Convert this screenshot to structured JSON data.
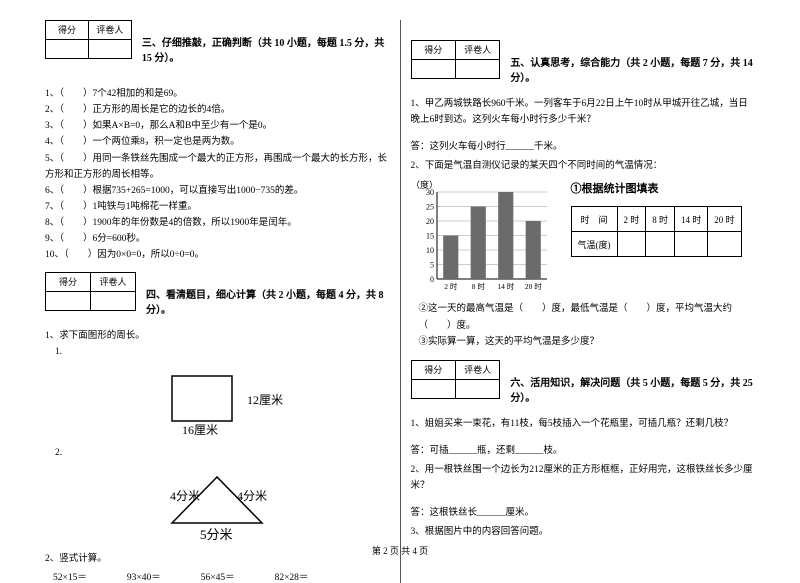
{
  "score_box": {
    "score": "得分",
    "marker": "评卷人"
  },
  "footer": "第 2 页 共 4 页",
  "section3": {
    "title": "三、仔细推敲，正确判断（共 10 小题，每题 1.5 分，共 15 分）。",
    "items": [
      "（　　）7个42相加的和是69。",
      "（　　）正方形的周长是它的边长的4倍。",
      "（　　）如果A×B=0，那么A和B中至少有一个是0。",
      "（　　）一个两位乘8，积一定也是两为数。",
      "（　　）用同一条铁丝先围成一个最大的正方形，再围成一个最大的长方形，长方形和正方形的周长相等。",
      "（　　）根据735+265=1000，可以直接写出1000−735的差。",
      "（　　）1吨铁与1吨棉花一样重。",
      "（　　）1900年的年份数是4的倍数，所以1900年是闰年。",
      "（　　）6分=600秒。",
      "（　　）因为0×0=0，所以0÷0=0。"
    ]
  },
  "section4": {
    "title": "四、看清题目，细心计算（共 2 小题，每题 4 分，共 8 分）。",
    "q1": "求下面图形的周长。",
    "q1_1": "1.",
    "fig1": {
      "w_label": "16厘米",
      "h_label": "12厘米"
    },
    "q1_2": "2.",
    "fig2": {
      "left": "4分米",
      "right": "4分米",
      "bottom": "5分米"
    },
    "q2": "竖式计算。",
    "calc": [
      "52×15＝",
      "93×40＝",
      "56×45＝",
      "82×28＝"
    ]
  },
  "section5": {
    "title": "五、认真思考，综合能力（共 2 小题，每题 7 分，共 14 分）。",
    "q1": "甲乙两城铁路长960千米。一列客车于6月22日上午10时从甲城开往乙城，当日晚上6时到达。这列火车每小时行多少千米？",
    "a1": "答：这列火车每小时行______千米。",
    "q2": "下面是气温自测仪记录的某天四个不同时间的气温情况：",
    "chart": {
      "type": "bar",
      "y_label": "（度）",
      "title": "①根据统计图填表",
      "y_ticks": [
        30,
        25,
        20,
        15,
        10,
        5,
        0
      ],
      "x_ticks": [
        "2 时",
        "8 时",
        "14 时",
        "20 时"
      ],
      "values": [
        15,
        25,
        30,
        20
      ],
      "bar_color": "#6b6b6b",
      "grid_color": "#999999",
      "ylim": [
        0,
        30
      ]
    },
    "table": {
      "row1_label": "时　间",
      "cols": [
        "2 时",
        "8 时",
        "14 时",
        "20 时"
      ],
      "row2_label": "气温(度)"
    },
    "q2_sub2": "②这一天的最高气温是（　　）度，最低气温是（　　）度，平均气温大约（　　）度。",
    "q2_sub3": "③实际算一算，这天的平均气温是多少度？"
  },
  "section6": {
    "title": "六、活用知识，解决问题（共 5 小题，每题 5 分，共 25 分）。",
    "q1": "姐姐买来一束花，有11枝，每5枝插入一个花瓶里，可插几瓶？还剩几枝？",
    "a1": "答：可插______瓶，还剩______枝。",
    "q2": "用一根铁丝围一个边长为212厘米的正方形框框，正好用完，这根铁丝长多少厘米？",
    "a2": "答：这根铁丝长______厘米。",
    "q3": "根据图片中的内容回答问题。"
  }
}
